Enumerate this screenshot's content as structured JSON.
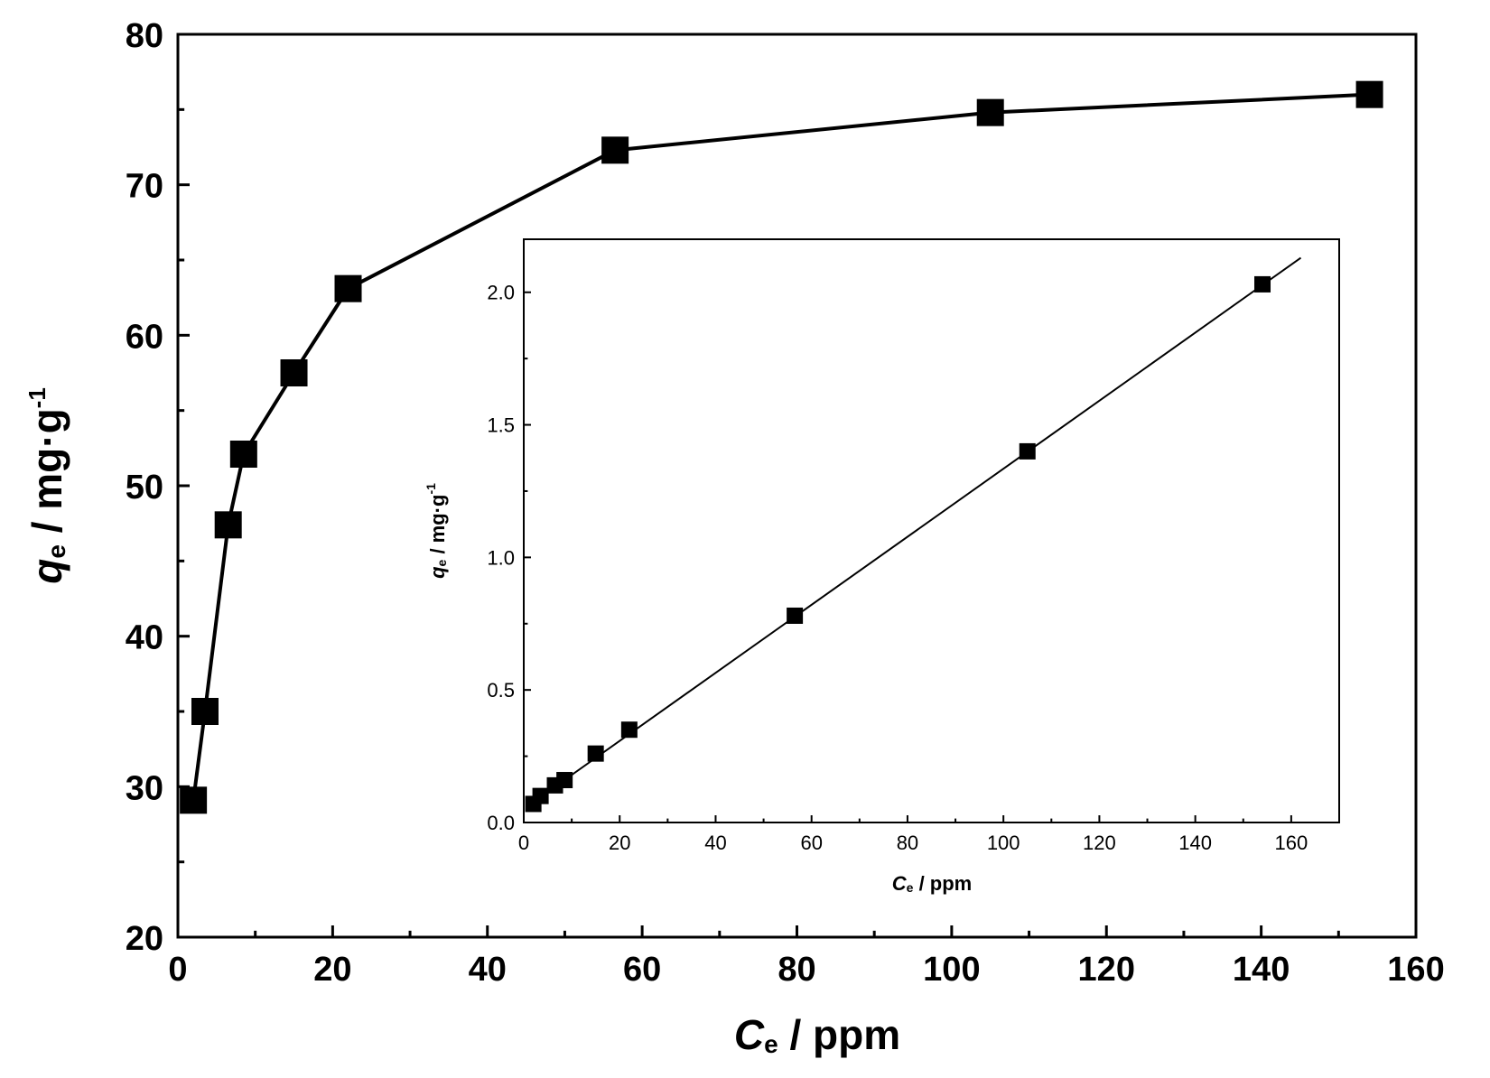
{
  "chart_data": [
    {
      "type": "line",
      "xlabel": {
        "symbol": "C",
        "subscript": "e",
        "unit": " / ppm"
      },
      "ylabel": {
        "symbol": "q",
        "subscript": "e",
        "unit": " / mg·g",
        "superscript": "-1"
      },
      "xlim": [
        0,
        160
      ],
      "ylim": [
        20,
        80
      ],
      "xticks": [
        "0",
        "20",
        "40",
        "60",
        "80",
        "100",
        "120",
        "140",
        "160"
      ],
      "yticks": [
        "20",
        "30",
        "40",
        "50",
        "60",
        "70",
        "80"
      ],
      "grid": false,
      "marker": "square",
      "series": [
        {
          "x": [
            2.0,
            3.5,
            6.5,
            8.5,
            15.0,
            22.0,
            56.5,
            105.0,
            154.0
          ],
          "y": [
            29.1,
            35.0,
            47.4,
            52.1,
            57.5,
            63.1,
            72.3,
            74.8,
            76.0
          ]
        }
      ]
    },
    {
      "type": "line",
      "inset": true,
      "xlabel": {
        "symbol": "C",
        "subscript": "e",
        "unit": " / ppm"
      },
      "ylabel": {
        "symbol": "q",
        "subscript": "e",
        "unit": " / mg·g",
        "superscript": "-1"
      },
      "xlim": [
        0,
        170
      ],
      "ylim": [
        0,
        2.2
      ],
      "xticks": [
        "0",
        "20",
        "40",
        "60",
        "80",
        "100",
        "120",
        "140",
        "160"
      ],
      "yticks": [
        "0.0",
        "0.5",
        "1.0",
        "1.5",
        "2.0"
      ],
      "grid": false,
      "series": [
        {
          "marker": "square",
          "x": [
            2.0,
            3.5,
            6.5,
            8.5,
            15.0,
            22.0,
            56.5,
            105.0,
            154.0
          ],
          "y": [
            0.07,
            0.1,
            0.14,
            0.16,
            0.26,
            0.35,
            0.78,
            1.4,
            2.03
          ]
        },
        {
          "kind": "fit-line",
          "x": [
            1.0,
            162.0
          ],
          "y": [
            0.064,
            2.13
          ]
        }
      ]
    }
  ]
}
